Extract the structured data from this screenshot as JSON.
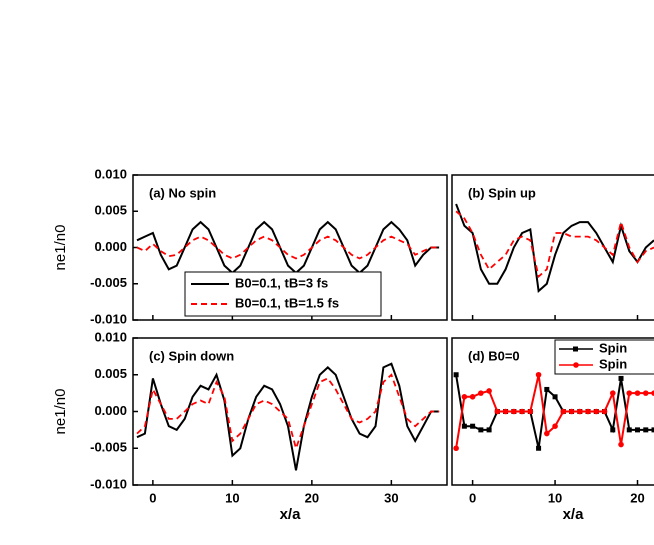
{
  "chart_data": [
    {
      "type": "line",
      "title": "(a) No spin",
      "ylabel": "ne1/n0",
      "xlim": [
        -2.5,
        37
      ],
      "ylim": [
        -0.01,
        0.01
      ],
      "xticks": [
        0,
        10,
        20,
        30
      ],
      "yticks": [
        {
          "value": -0.01,
          "label": "-0.010"
        },
        {
          "value": -0.005,
          "label": "-0.005"
        },
        {
          "value": 0,
          "label": "0.000"
        },
        {
          "value": 0.005,
          "label": "0.005"
        },
        {
          "value": 0.01,
          "label": "0.010"
        }
      ],
      "legend": "lower center",
      "x": [
        -2,
        -1,
        0,
        1,
        2,
        3,
        4,
        5,
        6,
        7,
        8,
        9,
        10,
        11,
        12,
        13,
        14,
        15,
        16,
        17,
        18,
        19,
        20,
        21,
        22,
        23,
        24,
        25,
        26,
        27,
        28,
        29,
        30,
        31,
        32,
        33,
        34,
        35,
        36
      ],
      "series": [
        {
          "name": "B0=0.1, tB=3 fs",
          "color": "#000000",
          "dash": false,
          "values": [
            0.001,
            0.0015,
            0.002,
            -0.001,
            -0.003,
            -0.0025,
            0,
            0.0025,
            0.0035,
            0.0025,
            0,
            -0.0025,
            -0.0035,
            -0.0025,
            0,
            0.0025,
            0.0035,
            0.0025,
            0,
            -0.0025,
            -0.0035,
            -0.0025,
            0,
            0.0025,
            0.0035,
            0.0025,
            0,
            -0.0025,
            -0.0035,
            -0.0025,
            0,
            0.0025,
            0.0035,
            0.0025,
            0.001,
            -0.0025,
            -0.001,
            0,
            0
          ]
        },
        {
          "name": "B0=0.1, tB=1.5 fs",
          "color": "#ff0000",
          "dash": true,
          "values": [
            0,
            -0.0005,
            0.0005,
            -0.0005,
            -0.0012,
            -0.001,
            0,
            0.001,
            0.0015,
            0.001,
            0,
            -0.001,
            -0.0015,
            -0.001,
            0,
            0.001,
            0.0015,
            0.001,
            0,
            -0.001,
            -0.0015,
            -0.001,
            0,
            0.001,
            0.0015,
            0.001,
            0,
            -0.001,
            -0.0015,
            -0.001,
            0,
            0.001,
            0.0015,
            0.001,
            0.0005,
            -0.001,
            -0.0005,
            0,
            0
          ]
        }
      ]
    },
    {
      "type": "line",
      "title": "(b) Spin up",
      "xlim": [
        -2.5,
        22
      ],
      "ylim": [
        -0.01,
        0.01
      ],
      "xticks": [
        0,
        10,
        20
      ],
      "x": [
        -2,
        -1,
        0,
        1,
        2,
        3,
        4,
        5,
        6,
        7,
        8,
        9,
        10,
        11,
        12,
        13,
        14,
        15,
        16,
        17,
        18,
        19,
        20,
        21,
        22
      ],
      "series": [
        {
          "color": "#000000",
          "dash": false,
          "values": [
            0.006,
            0.003,
            0.002,
            -0.003,
            -0.005,
            -0.005,
            -0.003,
            0,
            0.002,
            0.0025,
            -0.006,
            -0.005,
            -0.001,
            0.002,
            0.003,
            0.0035,
            0.0035,
            0.002,
            0,
            -0.002,
            0.003,
            -0.0005,
            -0.002,
            0,
            0.001
          ]
        },
        {
          "color": "#ff0000",
          "dash": true,
          "values": [
            0.005,
            0.004,
            0.002,
            -0.001,
            -0.003,
            -0.002,
            -0.001,
            0.001,
            0.0015,
            0.001,
            -0.004,
            -0.003,
            0.002,
            0.002,
            0.0015,
            0.0015,
            0.0015,
            0.001,
            0,
            -0.001,
            0.0035,
            0,
            -0.002,
            -0.0005,
            0
          ]
        }
      ]
    },
    {
      "type": "line",
      "title": "(c) Spin down",
      "ylabel": "ne1/n0",
      "xlabel": "x/a",
      "xlim": [
        -2.5,
        37
      ],
      "ylim": [
        -0.01,
        0.01
      ],
      "xticks": [
        0,
        10,
        20,
        30
      ],
      "yticks": [
        {
          "value": -0.01,
          "label": "-0.010"
        },
        {
          "value": -0.005,
          "label": "-0.005"
        },
        {
          "value": 0,
          "label": "0.000"
        },
        {
          "value": 0.005,
          "label": "0.005"
        },
        {
          "value": 0.01,
          "label": "0.010"
        }
      ],
      "x": [
        -2,
        -1,
        0,
        1,
        2,
        3,
        4,
        5,
        6,
        7,
        8,
        9,
        10,
        11,
        12,
        13,
        14,
        15,
        16,
        17,
        18,
        19,
        20,
        21,
        22,
        23,
        24,
        25,
        26,
        27,
        28,
        29,
        30,
        31,
        32,
        33,
        34,
        35,
        36
      ],
      "series": [
        {
          "color": "#000000",
          "dash": false,
          "values": [
            -0.0035,
            -0.003,
            0.0045,
            0.001,
            -0.002,
            -0.0025,
            -0.001,
            0.002,
            0.0035,
            0.003,
            0.005,
            0.0015,
            -0.006,
            -0.005,
            -0.001,
            0.002,
            0.0035,
            0.003,
            0.001,
            -0.002,
            -0.008,
            -0.002,
            0.002,
            0.005,
            0.006,
            0.005,
            0.002,
            -0.001,
            -0.003,
            -0.0035,
            -0.002,
            0.006,
            0.0065,
            0.0035,
            -0.002,
            -0.004,
            -0.002,
            0,
            0
          ]
        },
        {
          "color": "#ff0000",
          "dash": true,
          "values": [
            -0.003,
            -0.002,
            0.003,
            0.001,
            -0.001,
            -0.001,
            0,
            0.001,
            0.0015,
            0.001,
            0.004,
            0.002,
            -0.004,
            -0.003,
            -0.001,
            0.001,
            0.0015,
            0.001,
            0,
            -0.001,
            -0.005,
            -0.002,
            0.001,
            0.004,
            0.0045,
            0.003,
            0.001,
            -0.001,
            -0.0015,
            -0.001,
            0,
            0.004,
            0.005,
            0.002,
            -0.001,
            -0.002,
            -0.001,
            0,
            0
          ]
        }
      ]
    },
    {
      "type": "line",
      "title": "(d) B0=0",
      "xlabel": "x/a",
      "xlim": [
        -2.5,
        22
      ],
      "ylim": [
        -0.01,
        0.01
      ],
      "xticks": [
        0,
        10,
        20
      ],
      "legend": "upper right",
      "x": [
        -2,
        -1,
        0,
        1,
        2,
        3,
        4,
        5,
        6,
        7,
        8,
        9,
        10,
        11,
        12,
        13,
        14,
        15,
        16,
        17,
        18,
        19,
        20,
        21,
        22
      ],
      "series": [
        {
          "name": "Spin",
          "color": "#000000",
          "dash": false,
          "marker": "square",
          "values": [
            0.005,
            -0.002,
            -0.002,
            -0.0025,
            -0.0025,
            0,
            0,
            0,
            0,
            0,
            -0.005,
            0.003,
            0.002,
            0,
            0,
            0,
            0,
            0,
            0,
            -0.0025,
            0.0045,
            -0.0025,
            -0.0025,
            -0.0025,
            -0.0025
          ]
        },
        {
          "name": "Spin",
          "color": "#ff0000",
          "dash": false,
          "marker": "circle",
          "values": [
            -0.005,
            0.002,
            0.002,
            0.0025,
            0.0028,
            0,
            0,
            0,
            0,
            0,
            0.005,
            -0.003,
            -0.002,
            0,
            0,
            0,
            0,
            0,
            0,
            0.0025,
            -0.0045,
            0.0025,
            0.0025,
            0.0025,
            0.0025
          ]
        }
      ]
    }
  ]
}
